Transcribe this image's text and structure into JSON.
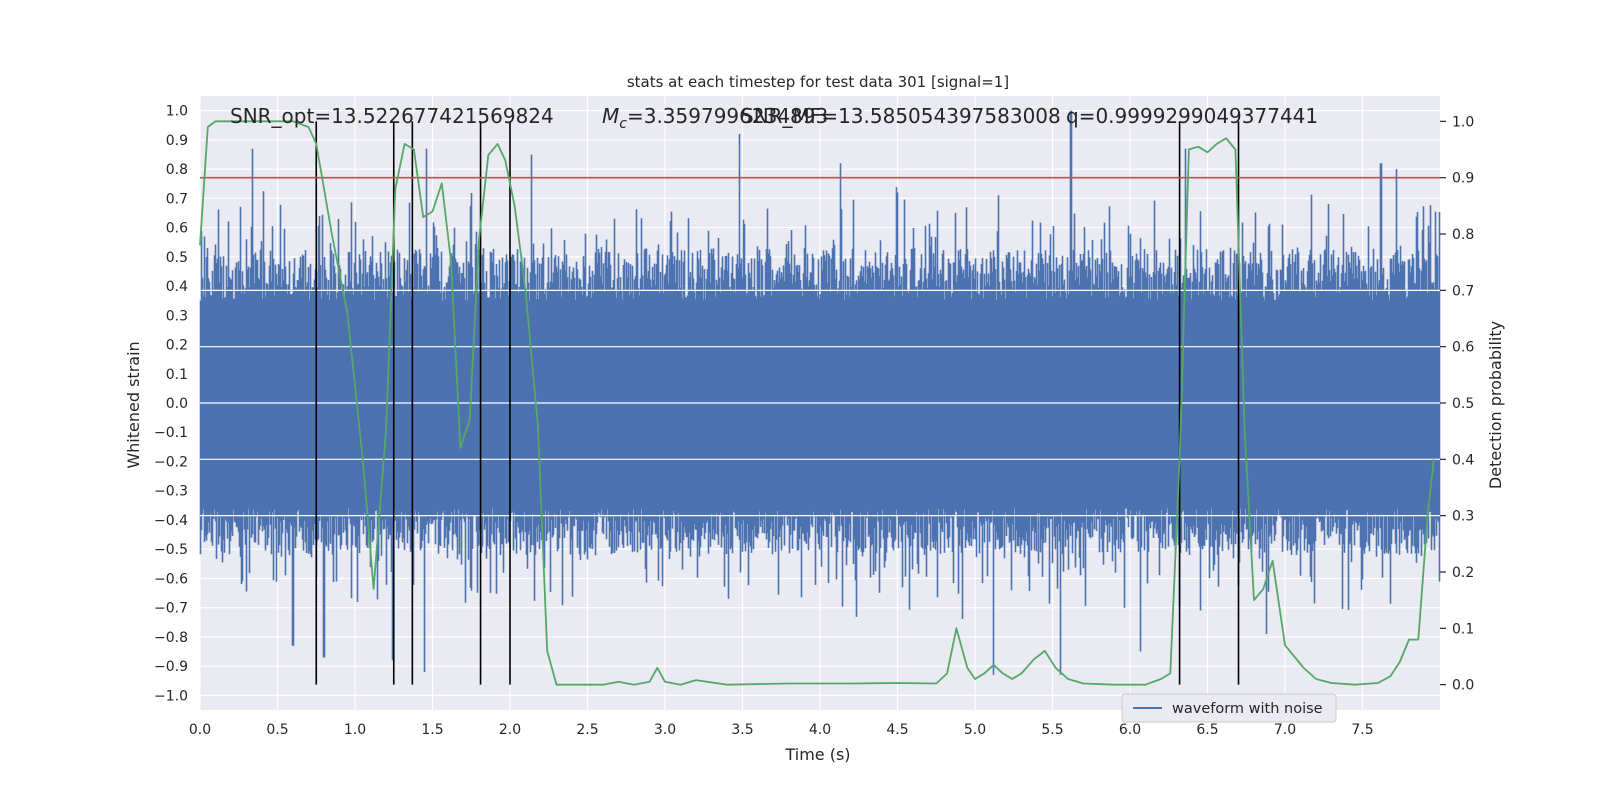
{
  "chart_data": {
    "type": "line",
    "title": "stats at each timestep for test data 301 [signal=1]",
    "xlabel": "Time (s)",
    "ylabel_left": "Whitened strain",
    "ylabel_right": "Detection probability",
    "xlim": [
      0,
      8
    ],
    "ylim_left": [
      -1.05,
      1.05
    ],
    "ylim_right": [
      -0.045,
      1.045
    ],
    "x_ticks": [
      0.0,
      0.5,
      1.0,
      1.5,
      2.0,
      2.5,
      3.0,
      3.5,
      4.0,
      4.5,
      5.0,
      5.5,
      6.0,
      6.5,
      7.0,
      7.5
    ],
    "x_tick_labels": [
      "0.0",
      "0.5",
      "1.0",
      "1.5",
      "2.0",
      "2.5",
      "3.0",
      "3.5",
      "4.0",
      "4.5",
      "5.0",
      "5.5",
      "6.0",
      "6.5",
      "7.0",
      "7.5"
    ],
    "y_left_ticks": [
      1.0,
      0.9,
      0.8,
      0.7,
      0.6,
      0.5,
      0.4,
      0.3,
      0.2,
      0.1,
      0.0,
      -0.1,
      -0.2,
      -0.3,
      -0.4,
      -0.5,
      -0.6,
      -0.7,
      -0.8,
      -0.9,
      -1.0
    ],
    "y_left_tick_labels": [
      "1.0",
      "0.9",
      "0.8",
      "0.7",
      "0.6",
      "0.5",
      "0.4",
      "0.3",
      "0.2",
      "0.1",
      "0.0",
      "−0.1",
      "−0.2",
      "−0.3",
      "−0.4",
      "−0.5",
      "−0.6",
      "−0.7",
      "−0.8",
      "−0.9",
      "−1.0"
    ],
    "y_right_ticks": [
      1.0,
      0.9,
      0.8,
      0.7,
      0.6,
      0.5,
      0.4,
      0.3,
      0.2,
      0.1,
      0.0
    ],
    "y_right_tick_labels": [
      "1.0",
      "0.9",
      "0.8",
      "0.7",
      "0.6",
      "0.5",
      "0.4",
      "0.3",
      "0.2",
      "0.1",
      "0.0"
    ],
    "grid": true,
    "annotations": {
      "snr_opt": "SNR_opt=13.522677421569824",
      "mc_symbol": "M",
      "mc_sub": "c",
      "mc_value": "=3.3597996234893",
      "snr_mf": "SNR_MF=13.585054397583008",
      "q_value": "q=0.9999299049377441"
    },
    "threshold": {
      "value": 0.9,
      "axis": "right",
      "color": "#c44e52"
    },
    "vertical_markers": [
      0.75,
      1.25,
      1.37,
      1.81,
      2.0,
      6.32,
      6.7
    ],
    "waveform": {
      "name": "waveform with noise",
      "color": "#4c72b0",
      "upper_envelope_peaks": [
        {
          "x": 0.34,
          "y": 0.87
        },
        {
          "x": 1.46,
          "y": 0.87
        },
        {
          "x": 2.14,
          "y": 0.85
        },
        {
          "x": 3.48,
          "y": 0.92
        },
        {
          "x": 4.13,
          "y": 0.82
        },
        {
          "x": 5.62,
          "y": 1.0
        },
        {
          "x": 6.36,
          "y": 0.87
        },
        {
          "x": 7.62,
          "y": 0.82
        },
        {
          "x": 7.72,
          "y": 0.8
        }
      ],
      "lower_envelope_peaks": [
        {
          "x": 0.6,
          "y": -0.83
        },
        {
          "x": 0.8,
          "y": -0.87
        },
        {
          "x": 1.24,
          "y": -0.88
        },
        {
          "x": 1.45,
          "y": -0.92
        },
        {
          "x": 5.12,
          "y": -0.93
        },
        {
          "x": 5.55,
          "y": -0.93
        },
        {
          "x": 6.07,
          "y": -0.85
        },
        {
          "x": 6.88,
          "y": -0.79
        }
      ]
    },
    "detection_probability": {
      "color": "#55a868",
      "points": [
        [
          0.0,
          0.78
        ],
        [
          0.05,
          0.99
        ],
        [
          0.1,
          1.0
        ],
        [
          0.3,
          1.0
        ],
        [
          0.6,
          1.0
        ],
        [
          0.7,
          0.99
        ],
        [
          0.75,
          0.96
        ],
        [
          0.85,
          0.8
        ],
        [
          0.95,
          0.66
        ],
        [
          1.05,
          0.4
        ],
        [
          1.12,
          0.17
        ],
        [
          1.2,
          0.45
        ],
        [
          1.26,
          0.88
        ],
        [
          1.32,
          0.96
        ],
        [
          1.38,
          0.95
        ],
        [
          1.44,
          0.83
        ],
        [
          1.5,
          0.84
        ],
        [
          1.56,
          0.89
        ],
        [
          1.62,
          0.75
        ],
        [
          1.68,
          0.42
        ],
        [
          1.74,
          0.47
        ],
        [
          1.8,
          0.79
        ],
        [
          1.86,
          0.94
        ],
        [
          1.92,
          0.96
        ],
        [
          1.97,
          0.93
        ],
        [
          2.03,
          0.85
        ],
        [
          2.1,
          0.7
        ],
        [
          2.18,
          0.46
        ],
        [
          2.24,
          0.06
        ],
        [
          2.3,
          0.0
        ],
        [
          2.4,
          0.0
        ],
        [
          2.6,
          0.0
        ],
        [
          2.7,
          0.005
        ],
        [
          2.8,
          0.0
        ],
        [
          2.9,
          0.005
        ],
        [
          2.95,
          0.03
        ],
        [
          3.0,
          0.005
        ],
        [
          3.1,
          0.0
        ],
        [
          3.2,
          0.008
        ],
        [
          3.4,
          0.0
        ],
        [
          3.8,
          0.002
        ],
        [
          4.2,
          0.002
        ],
        [
          4.5,
          0.003
        ],
        [
          4.75,
          0.002
        ],
        [
          4.82,
          0.02
        ],
        [
          4.88,
          0.1
        ],
        [
          4.95,
          0.03
        ],
        [
          5.0,
          0.01
        ],
        [
          5.06,
          0.02
        ],
        [
          5.12,
          0.035
        ],
        [
          5.18,
          0.02
        ],
        [
          5.24,
          0.01
        ],
        [
          5.3,
          0.02
        ],
        [
          5.38,
          0.045
        ],
        [
          5.45,
          0.06
        ],
        [
          5.52,
          0.03
        ],
        [
          5.6,
          0.01
        ],
        [
          5.7,
          0.002
        ],
        [
          5.9,
          0.0
        ],
        [
          6.1,
          0.0
        ],
        [
          6.2,
          0.01
        ],
        [
          6.26,
          0.02
        ],
        [
          6.32,
          0.4
        ],
        [
          6.38,
          0.95
        ],
        [
          6.44,
          0.955
        ],
        [
          6.5,
          0.945
        ],
        [
          6.56,
          0.96
        ],
        [
          6.62,
          0.97
        ],
        [
          6.68,
          0.95
        ],
        [
          6.74,
          0.45
        ],
        [
          6.8,
          0.15
        ],
        [
          6.86,
          0.17
        ],
        [
          6.92,
          0.22
        ],
        [
          7.0,
          0.07
        ],
        [
          7.06,
          0.05
        ],
        [
          7.12,
          0.03
        ],
        [
          7.2,
          0.01
        ],
        [
          7.3,
          0.003
        ],
        [
          7.45,
          0.0
        ],
        [
          7.6,
          0.003
        ],
        [
          7.68,
          0.015
        ],
        [
          7.74,
          0.04
        ],
        [
          7.8,
          0.08
        ],
        [
          7.86,
          0.08
        ],
        [
          7.92,
          0.3
        ],
        [
          7.96,
          0.4
        ]
      ]
    },
    "legend": {
      "position": "lower-right",
      "entries": [
        "waveform with noise"
      ]
    }
  }
}
